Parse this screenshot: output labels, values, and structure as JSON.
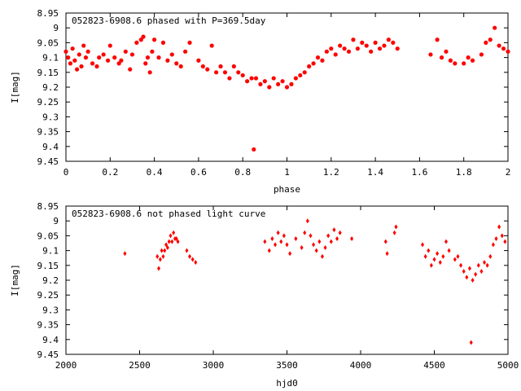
{
  "chart_data": [
    {
      "type": "scatter",
      "title": "052823-6908.6 phased with P=369.5day",
      "xlabel": "phase",
      "ylabel": "I[mag]",
      "xlim": [
        0,
        2
      ],
      "ylim": [
        9.45,
        8.95
      ],
      "y_inverted": true,
      "grid": false,
      "xticks": [
        "0",
        "0.2",
        "0.4",
        "0.6",
        "0.8",
        "1",
        "1.2",
        "1.4",
        "1.6",
        "1.8",
        "2"
      ],
      "yticks": [
        "8.95",
        "9",
        "9.05",
        "9.1",
        "9.15",
        "9.2",
        "9.25",
        "9.3",
        "9.35",
        "9.4",
        "9.45"
      ],
      "marker": "filled circle",
      "color": "#ff0000",
      "series": [
        {
          "x": [
            0.0,
            0.01,
            0.02,
            0.03,
            0.04,
            0.05,
            0.06,
            0.07,
            0.08,
            0.09,
            0.1,
            0.12,
            0.14,
            0.15,
            0.17,
            0.19,
            0.2,
            0.22,
            0.24,
            0.25,
            0.27,
            0.29,
            0.3,
            0.32,
            0.34,
            0.35,
            0.36,
            0.37,
            0.38,
            0.39,
            0.4,
            0.42,
            0.44,
            0.46,
            0.48,
            0.5,
            0.52,
            0.54,
            0.56,
            0.6,
            0.62,
            0.64,
            0.66,
            0.68,
            0.7,
            0.72,
            0.74,
            0.76,
            0.78,
            0.8,
            0.82,
            0.84,
            0.85,
            0.86,
            0.88,
            0.9,
            0.92,
            0.94,
            0.96,
            0.98,
            1.0,
            1.02,
            1.04,
            1.06,
            1.08,
            1.1,
            1.12,
            1.14,
            1.16,
            1.18,
            1.2,
            1.22,
            1.24,
            1.26,
            1.28,
            1.3,
            1.32,
            1.34,
            1.36,
            1.38,
            1.4,
            1.42,
            1.44,
            1.46,
            1.48,
            1.5,
            1.65,
            1.68,
            1.7,
            1.72,
            1.74,
            1.76,
            1.8,
            1.82,
            1.84,
            1.88,
            1.9,
            1.92,
            1.94,
            1.96,
            1.98,
            2.0
          ],
          "y": [
            9.08,
            9.1,
            9.12,
            9.07,
            9.11,
            9.14,
            9.09,
            9.13,
            9.06,
            9.1,
            9.08,
            9.12,
            9.13,
            9.1,
            9.09,
            9.11,
            9.06,
            9.1,
            9.12,
            9.11,
            9.08,
            9.14,
            9.09,
            9.05,
            9.04,
            9.03,
            9.12,
            9.1,
            9.15,
            9.08,
            9.04,
            9.1,
            9.05,
            9.11,
            9.09,
            9.12,
            9.13,
            9.08,
            9.05,
            9.11,
            9.13,
            9.14,
            9.06,
            9.15,
            9.13,
            9.15,
            9.17,
            9.13,
            9.15,
            9.16,
            9.18,
            9.17,
            9.41,
            9.17,
            9.19,
            9.18,
            9.2,
            9.17,
            9.19,
            9.18,
            9.2,
            9.19,
            9.17,
            9.16,
            9.15,
            9.13,
            9.12,
            9.1,
            9.11,
            9.08,
            9.07,
            9.09,
            9.06,
            9.07,
            9.08,
            9.04,
            9.07,
            9.05,
            9.06,
            9.08,
            9.05,
            9.07,
            9.06,
            9.04,
            9.05,
            9.07,
            9.09,
            9.04,
            9.1,
            9.08,
            9.11,
            9.12,
            9.12,
            9.1,
            9.11,
            9.09,
            9.05,
            9.04,
            9.0,
            9.06,
            9.07,
            9.08
          ]
        }
      ]
    },
    {
      "type": "scatter",
      "title": "052823-6908.6 not phased light curve",
      "xlabel": "hjd0",
      "ylabel": "I[mag]",
      "xlim": [
        2000,
        5000
      ],
      "ylim": [
        9.45,
        8.95
      ],
      "y_inverted": true,
      "grid": false,
      "xticks": [
        "2000",
        "2500",
        "3000",
        "3500",
        "4000",
        "4500",
        "5000"
      ],
      "yticks": [
        "8.95",
        "9",
        "9.05",
        "9.1",
        "9.15",
        "9.2",
        "9.25",
        "9.3",
        "9.35",
        "9.4",
        "9.45"
      ],
      "marker": "diamond",
      "color": "#ff0000",
      "series": [
        {
          "x": [
            2400,
            2620,
            2630,
            2640,
            2650,
            2660,
            2670,
            2680,
            2690,
            2700,
            2710,
            2720,
            2730,
            2740,
            2750,
            2760,
            2820,
            2840,
            2860,
            2880,
            3350,
            3380,
            3400,
            3420,
            3440,
            3460,
            3480,
            3500,
            3520,
            3560,
            3600,
            3620,
            3640,
            3660,
            3680,
            3700,
            3720,
            3740,
            3760,
            3780,
            3800,
            3820,
            3840,
            3860,
            3940,
            4170,
            4180,
            4230,
            4240,
            4420,
            4440,
            4460,
            4480,
            4500,
            4520,
            4540,
            4560,
            4580,
            4600,
            4640,
            4660,
            4680,
            4700,
            4720,
            4740,
            4750,
            4760,
            4780,
            4800,
            4820,
            4840,
            4860,
            4880,
            4900,
            4920,
            4940,
            4960,
            4980
          ],
          "y": [
            9.11,
            9.12,
            9.16,
            9.13,
            9.1,
            9.12,
            9.1,
            9.08,
            9.09,
            9.07,
            9.05,
            9.07,
            9.04,
            9.06,
            9.06,
            9.07,
            9.1,
            9.12,
            9.13,
            9.14,
            9.07,
            9.1,
            9.06,
            9.08,
            9.04,
            9.07,
            9.05,
            9.08,
            9.11,
            9.06,
            9.09,
            9.04,
            9.0,
            9.05,
            9.08,
            9.1,
            9.07,
            9.12,
            9.09,
            9.05,
            9.07,
            9.03,
            9.06,
            9.04,
            9.06,
            9.07,
            9.11,
            9.04,
            9.02,
            9.08,
            9.12,
            9.1,
            9.15,
            9.13,
            9.11,
            9.14,
            9.12,
            9.07,
            9.1,
            9.13,
            9.12,
            9.15,
            9.17,
            9.19,
            9.16,
            9.41,
            9.2,
            9.18,
            9.15,
            9.17,
            9.14,
            9.15,
            9.12,
            9.08,
            9.06,
            9.02,
            9.05,
            9.07
          ]
        }
      ]
    }
  ]
}
